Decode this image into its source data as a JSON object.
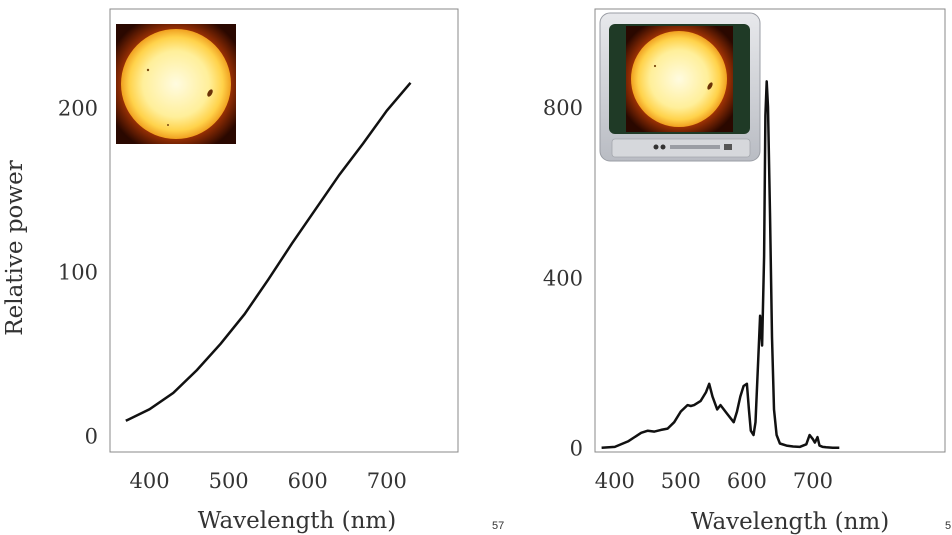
{
  "chart_data": [
    {
      "type": "line",
      "title": "",
      "xlabel": "Wavelength (nm)",
      "ylabel": "Relative power",
      "xlim": [
        350,
        790
      ],
      "ylim": [
        -10,
        260
      ],
      "xticks": [
        400,
        500,
        600,
        700
      ],
      "yticks": [
        0,
        100,
        200
      ],
      "grid": false,
      "inset_image": "sun",
      "series": [
        {
          "color": "#111111",
          "x": [
            370,
            400,
            430,
            460,
            490,
            520,
            550,
            580,
            610,
            640,
            670,
            700,
            730
          ],
          "y": [
            9,
            16,
            26,
            40,
            56,
            74,
            95,
            117,
            138,
            159,
            178,
            198,
            215
          ]
        }
      ]
    },
    {
      "type": "line",
      "title": "",
      "xlabel": "Wavelength (nm)",
      "ylabel": "",
      "xlim": [
        370,
        900
      ],
      "ylim": [
        -10,
        1030
      ],
      "xticks": [
        400,
        500,
        600,
        700
      ],
      "yticks": [
        0,
        400,
        800
      ],
      "grid": false,
      "inset_image": "tv-showing-sun",
      "series": [
        {
          "color": "#111111",
          "x": [
            380,
            400,
            420,
            440,
            450,
            460,
            470,
            480,
            490,
            500,
            510,
            515,
            520,
            530,
            538,
            543,
            548,
            555,
            560,
            570,
            580,
            585,
            590,
            595,
            600,
            603,
            606,
            610,
            613,
            617,
            620,
            623,
            626,
            628,
            630,
            632,
            635,
            638,
            641,
            645,
            650,
            660,
            670,
            680,
            690,
            695,
            700,
            703,
            707,
            710,
            715,
            720,
            730,
            740
          ],
          "y": [
            0,
            2,
            15,
            35,
            40,
            38,
            42,
            45,
            60,
            85,
            100,
            98,
            100,
            110,
            130,
            150,
            120,
            90,
            100,
            80,
            60,
            85,
            120,
            145,
            150,
            90,
            40,
            30,
            60,
            200,
            310,
            240,
            450,
            780,
            860,
            800,
            550,
            260,
            90,
            30,
            10,
            5,
            3,
            2,
            8,
            30,
            20,
            12,
            25,
            5,
            2,
            1,
            0,
            0
          ]
        }
      ]
    }
  ],
  "slide_numbers": [
    "57",
    "5"
  ]
}
